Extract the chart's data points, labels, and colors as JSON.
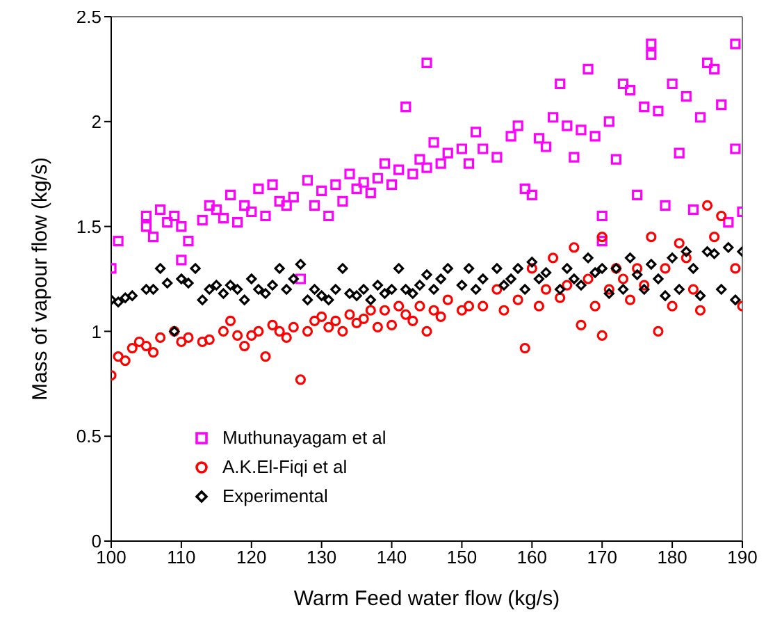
{
  "chart_data": {
    "type": "scatter",
    "xlabel": "Warm Feed water flow (kg/s)",
    "ylabel": "Mass of vapour flow (kg/s)",
    "xlim": [
      100,
      190
    ],
    "xticks": [
      100,
      110,
      120,
      130,
      140,
      150,
      160,
      170,
      180,
      190
    ],
    "ylim": [
      0,
      2.5
    ],
    "yticks": [
      0,
      0.5,
      1,
      1.5,
      2,
      2.5
    ],
    "grid": false,
    "legend": "bottom left",
    "series": [
      {
        "name": "Muthunayagam et al",
        "color": "#ff00ff",
        "marker": "square",
        "x": [
          100,
          101,
          105,
          105,
          106,
          107,
          108,
          109,
          110,
          110,
          111,
          113,
          114,
          115,
          116,
          117,
          118,
          119,
          120,
          121,
          122,
          123,
          124,
          125,
          126,
          127,
          128,
          129,
          130,
          131,
          132,
          133,
          134,
          135,
          136,
          137,
          138,
          139,
          140,
          141,
          142,
          143,
          144,
          145,
          145,
          146,
          147,
          148,
          150,
          151,
          152,
          153,
          155,
          157,
          158,
          159,
          160,
          161,
          162,
          163,
          164,
          165,
          166,
          167,
          168,
          169,
          170,
          170,
          171,
          172,
          173,
          174,
          175,
          176,
          177,
          177,
          178,
          179,
          180,
          181,
          182,
          183,
          184,
          185,
          186,
          187,
          188,
          189,
          189,
          190
        ],
        "values": [
          1.3,
          1.43,
          1.55,
          1.5,
          1.45,
          1.58,
          1.52,
          1.55,
          1.5,
          1.34,
          1.43,
          1.53,
          1.6,
          1.58,
          1.54,
          1.65,
          1.52,
          1.6,
          1.57,
          1.68,
          1.55,
          1.7,
          1.62,
          1.6,
          1.64,
          1.25,
          1.72,
          1.6,
          1.67,
          1.55,
          1.7,
          1.62,
          1.75,
          1.68,
          1.71,
          1.66,
          1.73,
          1.8,
          1.7,
          1.77,
          2.07,
          1.75,
          1.82,
          2.28,
          1.78,
          1.9,
          1.8,
          1.85,
          1.87,
          1.8,
          1.95,
          1.87,
          1.83,
          1.93,
          1.98,
          1.68,
          1.65,
          1.92,
          1.88,
          2.02,
          2.18,
          1.98,
          1.83,
          1.96,
          2.25,
          1.93,
          1.55,
          1.43,
          2.0,
          1.82,
          2.18,
          2.15,
          1.65,
          2.07,
          2.37,
          2.32,
          2.05,
          1.6,
          2.18,
          1.85,
          2.12,
          1.58,
          2.02,
          2.28,
          2.25,
          2.08,
          1.52,
          1.87,
          2.37,
          1.57
        ]
      },
      {
        "name": "A.K.El-Fiqi et al",
        "color": "#ff0000",
        "marker": "circle",
        "x": [
          100,
          101,
          102,
          103,
          104,
          105,
          106,
          107,
          109,
          110,
          111,
          113,
          114,
          116,
          117,
          118,
          119,
          120,
          121,
          122,
          123,
          124,
          125,
          126,
          127,
          128,
          129,
          130,
          131,
          132,
          133,
          134,
          135,
          136,
          137,
          138,
          139,
          140,
          141,
          142,
          143,
          144,
          145,
          146,
          147,
          148,
          150,
          151,
          153,
          155,
          156,
          158,
          159,
          160,
          161,
          162,
          163,
          164,
          165,
          166,
          167,
          168,
          169,
          170,
          170,
          171,
          172,
          173,
          174,
          175,
          176,
          177,
          178,
          179,
          180,
          181,
          182,
          183,
          184,
          185,
          186,
          187,
          189,
          190
        ],
        "values": [
          0.79,
          0.88,
          0.86,
          0.92,
          0.95,
          0.93,
          0.9,
          0.97,
          1.0,
          0.95,
          0.97,
          0.95,
          0.96,
          1.0,
          1.05,
          0.98,
          0.93,
          0.98,
          1.0,
          0.88,
          1.03,
          1.0,
          0.97,
          1.02,
          0.77,
          1.0,
          1.05,
          1.07,
          1.02,
          1.05,
          1.0,
          1.08,
          1.04,
          1.06,
          1.1,
          1.02,
          1.1,
          1.03,
          1.12,
          1.08,
          1.05,
          1.12,
          1.0,
          1.1,
          1.07,
          1.15,
          1.1,
          1.12,
          1.12,
          1.2,
          1.1,
          1.15,
          0.92,
          1.3,
          1.12,
          1.2,
          1.35,
          1.16,
          1.22,
          1.4,
          1.03,
          1.25,
          1.12,
          1.45,
          0.98,
          1.2,
          1.3,
          1.25,
          1.15,
          1.3,
          1.22,
          1.45,
          1.0,
          1.3,
          1.12,
          1.42,
          1.35,
          1.2,
          1.1,
          1.6,
          1.45,
          1.55,
          1.3,
          1.12
        ]
      },
      {
        "name": "Experimental",
        "color": "#000000",
        "marker": "diamond",
        "x": [
          100,
          101,
          102,
          103,
          105,
          106,
          107,
          108,
          109,
          110,
          111,
          112,
          113,
          114,
          115,
          116,
          117,
          118,
          119,
          120,
          121,
          122,
          123,
          124,
          125,
          126,
          127,
          128,
          129,
          130,
          131,
          132,
          133,
          134,
          135,
          136,
          137,
          138,
          139,
          140,
          141,
          142,
          143,
          144,
          145,
          146,
          147,
          148,
          150,
          151,
          152,
          153,
          155,
          156,
          157,
          158,
          159,
          160,
          161,
          162,
          164,
          165,
          166,
          167,
          168,
          169,
          170,
          171,
          172,
          173,
          174,
          175,
          176,
          177,
          178,
          179,
          180,
          181,
          182,
          183,
          184,
          185,
          186,
          187,
          188,
          189,
          190
        ],
        "values": [
          1.15,
          1.14,
          1.16,
          1.17,
          1.2,
          1.2,
          1.3,
          1.23,
          1.0,
          1.25,
          1.23,
          1.3,
          1.15,
          1.2,
          1.22,
          1.18,
          1.22,
          1.2,
          1.15,
          1.25,
          1.2,
          1.18,
          1.22,
          1.3,
          1.2,
          1.25,
          1.32,
          1.15,
          1.2,
          1.17,
          1.15,
          1.2,
          1.3,
          1.18,
          1.17,
          1.2,
          1.15,
          1.22,
          1.18,
          1.2,
          1.3,
          1.2,
          1.18,
          1.22,
          1.27,
          1.2,
          1.25,
          1.3,
          1.22,
          1.3,
          1.2,
          1.25,
          1.3,
          1.22,
          1.25,
          1.3,
          1.2,
          1.33,
          1.25,
          1.28,
          1.2,
          1.3,
          1.25,
          1.22,
          1.35,
          1.28,
          1.3,
          1.18,
          1.3,
          1.2,
          1.35,
          1.27,
          1.2,
          1.32,
          1.25,
          1.17,
          1.35,
          1.2,
          1.38,
          1.3,
          1.17,
          1.38,
          1.37,
          1.2,
          1.4,
          1.15,
          1.38
        ]
      }
    ]
  }
}
